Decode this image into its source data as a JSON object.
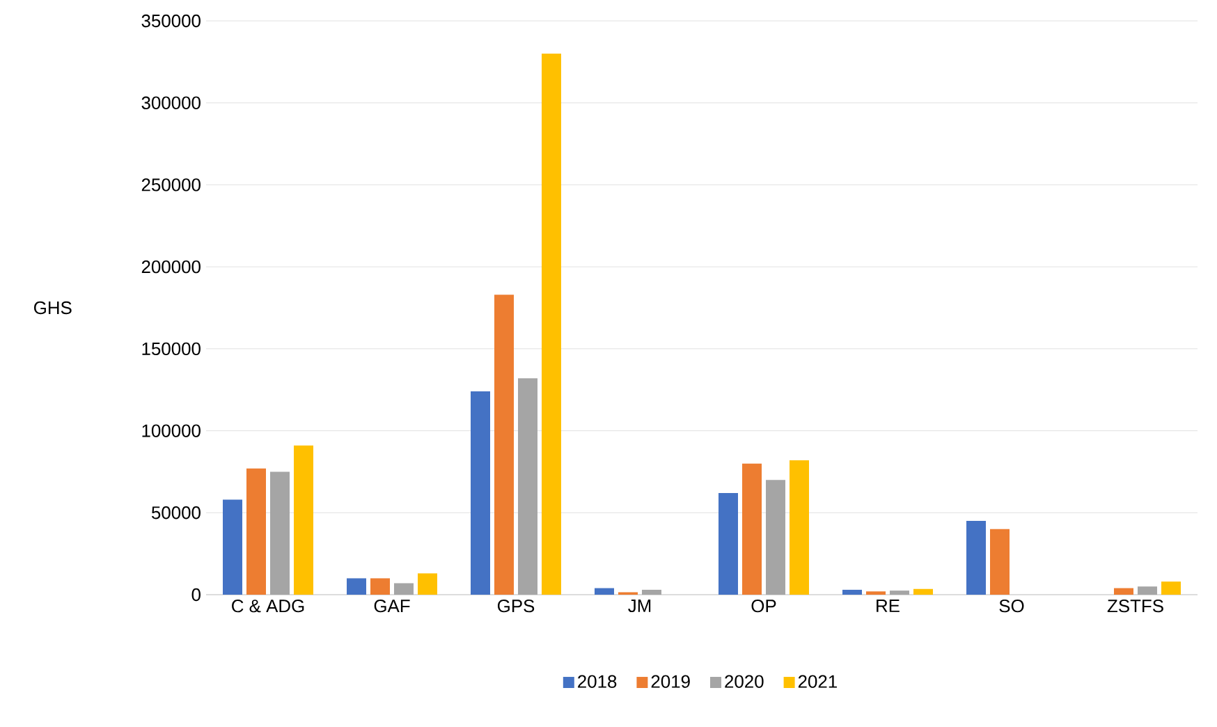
{
  "chart_data": {
    "type": "bar",
    "ylabel": "GHS",
    "categories": [
      "C & ADG",
      "GAF",
      "GPS",
      "JM",
      "OP",
      "RE",
      "SO",
      "ZSTFS"
    ],
    "series": [
      {
        "name": "2018",
        "color": "#4472c4",
        "values": [
          58000,
          10000,
          124000,
          4000,
          62000,
          3000,
          45000,
          null
        ]
      },
      {
        "name": "2019",
        "color": "#ed7d31",
        "values": [
          77000,
          10000,
          183000,
          1500,
          80000,
          2000,
          40000,
          4000
        ]
      },
      {
        "name": "2020",
        "color": "#a5a5a5",
        "values": [
          75000,
          7000,
          132000,
          3000,
          70000,
          2500,
          null,
          5000
        ]
      },
      {
        "name": "2021",
        "color": "#ffc000",
        "values": [
          91000,
          13000,
          330000,
          null,
          82000,
          3500,
          null,
          8000
        ]
      }
    ],
    "ylim": [
      0,
      350000
    ],
    "yticks": [
      0,
      50000,
      100000,
      150000,
      200000,
      250000,
      300000,
      350000
    ],
    "grid": "y",
    "legend": "bottom"
  }
}
